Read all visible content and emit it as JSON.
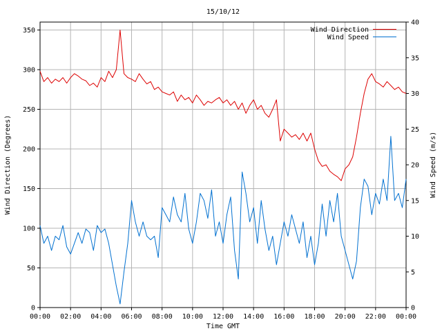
{
  "chart_data": {
    "type": "line",
    "title": "15/10/12",
    "xlabel": "Time GMT",
    "ylabel_left": "Wind Direction (Degrees)",
    "ylabel_right": "Wind Speed (m/s)",
    "x_range_hours": [
      0,
      24
    ],
    "x_ticks": [
      "00:00",
      "02:00",
      "04:00",
      "06:00",
      "08:00",
      "10:00",
      "12:00",
      "14:00",
      "16:00",
      "18:00",
      "20:00",
      "22:00",
      "00:00"
    ],
    "y_left_range": [
      0,
      360
    ],
    "y_left_ticks": [
      "0",
      "50",
      "100",
      "150",
      "200",
      "250",
      "300",
      "350"
    ],
    "y_right_range": [
      0,
      40
    ],
    "y_right_ticks": [
      "0",
      "5",
      "10",
      "15",
      "20",
      "25",
      "30",
      "35",
      "40"
    ],
    "grid": true,
    "legend_position": "top-right",
    "series": [
      {
        "name": "Wind Direction",
        "axis": "left",
        "color": "#dd0000",
        "points": [
          [
            0.0,
            298
          ],
          [
            0.25,
            285
          ],
          [
            0.5,
            290
          ],
          [
            0.75,
            283
          ],
          [
            1.0,
            288
          ],
          [
            1.25,
            285
          ],
          [
            1.5,
            290
          ],
          [
            1.75,
            283
          ],
          [
            2.0,
            290
          ],
          [
            2.25,
            295
          ],
          [
            2.5,
            292
          ],
          [
            2.75,
            288
          ],
          [
            3.0,
            286
          ],
          [
            3.25,
            280
          ],
          [
            3.5,
            283
          ],
          [
            3.75,
            278
          ],
          [
            4.0,
            290
          ],
          [
            4.25,
            285
          ],
          [
            4.5,
            298
          ],
          [
            4.75,
            290
          ],
          [
            5.0,
            300
          ],
          [
            5.25,
            350
          ],
          [
            5.5,
            295
          ],
          [
            5.75,
            290
          ],
          [
            6.0,
            288
          ],
          [
            6.25,
            285
          ],
          [
            6.5,
            295
          ],
          [
            6.75,
            288
          ],
          [
            7.0,
            282
          ],
          [
            7.25,
            285
          ],
          [
            7.5,
            275
          ],
          [
            7.75,
            278
          ],
          [
            8.0,
            272
          ],
          [
            8.25,
            270
          ],
          [
            8.5,
            268
          ],
          [
            8.75,
            272
          ],
          [
            9.0,
            260
          ],
          [
            9.25,
            268
          ],
          [
            9.5,
            262
          ],
          [
            9.75,
            265
          ],
          [
            10.0,
            258
          ],
          [
            10.25,
            268
          ],
          [
            10.5,
            262
          ],
          [
            10.75,
            255
          ],
          [
            11.0,
            260
          ],
          [
            11.25,
            258
          ],
          [
            11.5,
            262
          ],
          [
            11.75,
            265
          ],
          [
            12.0,
            258
          ],
          [
            12.25,
            262
          ],
          [
            12.5,
            255
          ],
          [
            12.75,
            260
          ],
          [
            13.0,
            250
          ],
          [
            13.25,
            258
          ],
          [
            13.5,
            245
          ],
          [
            13.75,
            255
          ],
          [
            14.0,
            262
          ],
          [
            14.25,
            250
          ],
          [
            14.5,
            255
          ],
          [
            14.75,
            245
          ],
          [
            15.0,
            240
          ],
          [
            15.25,
            250
          ],
          [
            15.5,
            262
          ],
          [
            15.75,
            210
          ],
          [
            16.0,
            225
          ],
          [
            16.25,
            220
          ],
          [
            16.5,
            215
          ],
          [
            16.75,
            218
          ],
          [
            17.0,
            212
          ],
          [
            17.25,
            220
          ],
          [
            17.5,
            210
          ],
          [
            17.75,
            220
          ],
          [
            18.0,
            200
          ],
          [
            18.25,
            185
          ],
          [
            18.5,
            178
          ],
          [
            18.75,
            180
          ],
          [
            19.0,
            172
          ],
          [
            19.25,
            168
          ],
          [
            19.5,
            165
          ],
          [
            19.75,
            160
          ],
          [
            20.0,
            175
          ],
          [
            20.25,
            180
          ],
          [
            20.5,
            190
          ],
          [
            20.75,
            215
          ],
          [
            21.0,
            245
          ],
          [
            21.25,
            270
          ],
          [
            21.5,
            288
          ],
          [
            21.75,
            295
          ],
          [
            22.0,
            285
          ],
          [
            22.25,
            282
          ],
          [
            22.5,
            278
          ],
          [
            22.75,
            285
          ],
          [
            23.0,
            280
          ],
          [
            23.25,
            275
          ],
          [
            23.5,
            278
          ],
          [
            23.75,
            272
          ],
          [
            24.0,
            270
          ]
        ]
      },
      {
        "name": "Wind Speed",
        "axis": "right",
        "color": "#0070d0",
        "points": [
          [
            0.0,
            11.5
          ],
          [
            0.25,
            9.0
          ],
          [
            0.5,
            10.0
          ],
          [
            0.75,
            8.0
          ],
          [
            1.0,
            10.0
          ],
          [
            1.25,
            9.5
          ],
          [
            1.5,
            11.5
          ],
          [
            1.75,
            8.5
          ],
          [
            2.0,
            7.5
          ],
          [
            2.25,
            9.0
          ],
          [
            2.5,
            10.5
          ],
          [
            2.75,
            9.0
          ],
          [
            3.0,
            11.0
          ],
          [
            3.25,
            10.5
          ],
          [
            3.5,
            8.0
          ],
          [
            3.75,
            11.5
          ],
          [
            4.0,
            10.5
          ],
          [
            4.25,
            11.0
          ],
          [
            4.5,
            9.0
          ],
          [
            4.75,
            6.0
          ],
          [
            5.0,
            3.0
          ],
          [
            5.25,
            0.5
          ],
          [
            5.5,
            5.0
          ],
          [
            5.75,
            9.0
          ],
          [
            6.0,
            15.0
          ],
          [
            6.25,
            12.0
          ],
          [
            6.5,
            10.0
          ],
          [
            6.75,
            12.0
          ],
          [
            7.0,
            10.0
          ],
          [
            7.25,
            9.5
          ],
          [
            7.5,
            10.0
          ],
          [
            7.75,
            7.0
          ],
          [
            8.0,
            14.0
          ],
          [
            8.25,
            13.0
          ],
          [
            8.5,
            12.0
          ],
          [
            8.75,
            15.5
          ],
          [
            9.0,
            13.0
          ],
          [
            9.25,
            12.0
          ],
          [
            9.5,
            16.0
          ],
          [
            9.75,
            11.0
          ],
          [
            10.0,
            9.0
          ],
          [
            10.25,
            12.0
          ],
          [
            10.5,
            16.0
          ],
          [
            10.75,
            15.0
          ],
          [
            11.0,
            12.5
          ],
          [
            11.25,
            16.5
          ],
          [
            11.5,
            10.0
          ],
          [
            11.75,
            12.0
          ],
          [
            12.0,
            9.0
          ],
          [
            12.25,
            13.0
          ],
          [
            12.5,
            15.5
          ],
          [
            12.75,
            8.0
          ],
          [
            13.0,
            4.0
          ],
          [
            13.25,
            19.0
          ],
          [
            13.5,
            16.0
          ],
          [
            13.75,
            12.0
          ],
          [
            14.0,
            14.0
          ],
          [
            14.25,
            9.0
          ],
          [
            14.5,
            15.0
          ],
          [
            14.75,
            11.0
          ],
          [
            15.0,
            8.0
          ],
          [
            15.25,
            10.0
          ],
          [
            15.5,
            6.0
          ],
          [
            15.75,
            9.0
          ],
          [
            16.0,
            12.0
          ],
          [
            16.25,
            10.0
          ],
          [
            16.5,
            13.0
          ],
          [
            16.75,
            11.0
          ],
          [
            17.0,
            9.0
          ],
          [
            17.25,
            12.0
          ],
          [
            17.5,
            7.0
          ],
          [
            17.75,
            10.0
          ],
          [
            18.0,
            6.0
          ],
          [
            18.25,
            9.0
          ],
          [
            18.5,
            14.5
          ],
          [
            18.75,
            10.0
          ],
          [
            19.0,
            15.0
          ],
          [
            19.25,
            12.0
          ],
          [
            19.5,
            16.0
          ],
          [
            19.75,
            10.0
          ],
          [
            20.0,
            8.0
          ],
          [
            20.25,
            6.0
          ],
          [
            20.5,
            4.0
          ],
          [
            20.75,
            6.5
          ],
          [
            21.0,
            14.0
          ],
          [
            21.25,
            18.0
          ],
          [
            21.5,
            17.0
          ],
          [
            21.75,
            13.0
          ],
          [
            22.0,
            16.0
          ],
          [
            22.25,
            14.5
          ],
          [
            22.5,
            18.0
          ],
          [
            22.75,
            15.0
          ],
          [
            23.0,
            24.0
          ],
          [
            23.25,
            15.0
          ],
          [
            23.5,
            16.0
          ],
          [
            23.75,
            14.0
          ],
          [
            24.0,
            18.0
          ]
        ]
      }
    ]
  }
}
